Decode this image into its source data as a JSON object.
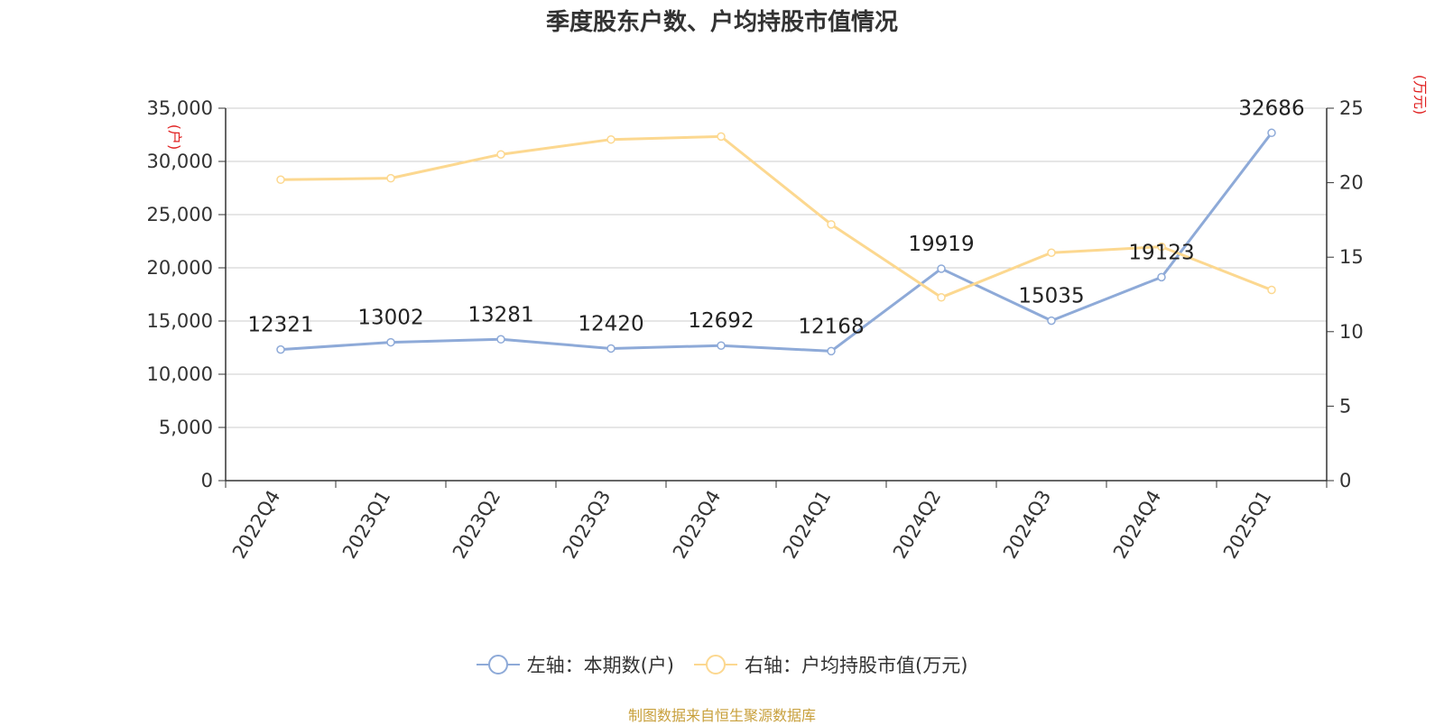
{
  "title": "季度股东户数、户均持股市值情况",
  "footer": "制图数据来自恒生聚源数据库",
  "chart_data": {
    "type": "line",
    "categories": [
      "2022Q4",
      "2023Q1",
      "2023Q2",
      "2023Q3",
      "2023Q4",
      "2024Q1",
      "2024Q2",
      "2024Q3",
      "2024Q4",
      "2025Q1"
    ],
    "y_left": {
      "unit_label": "(户)",
      "range": [
        0,
        35000
      ],
      "ticks": [
        0,
        5000,
        10000,
        15000,
        20000,
        25000,
        30000,
        35000
      ],
      "tick_labels": [
        "0",
        "5,000",
        "10,000",
        "15,000",
        "20,000",
        "25,000",
        "30,000",
        "35,000"
      ]
    },
    "y_right": {
      "unit_label": "(万元)",
      "range": [
        0,
        25
      ],
      "ticks": [
        0,
        5,
        10,
        15,
        20,
        25
      ],
      "tick_labels": [
        "0",
        "5",
        "10",
        "15",
        "20",
        "25"
      ]
    },
    "series": [
      {
        "name": "左轴：本期数(户)",
        "axis": "left",
        "color": "#8eaad8",
        "values": [
          12321,
          13002,
          13281,
          12420,
          12692,
          12168,
          19919,
          15035,
          19123,
          32686
        ],
        "data_labels": [
          "12321",
          "13002",
          "13281",
          "12420",
          "12692",
          "12168",
          "19919",
          "15035",
          "19123",
          "32686"
        ]
      },
      {
        "name": "右轴：户均持股市值(万元)",
        "axis": "right",
        "color": "#fcd890",
        "values": [
          20.2,
          20.3,
          21.9,
          22.9,
          23.1,
          17.2,
          12.3,
          15.3,
          15.7,
          12.8
        ]
      }
    ],
    "grid": true,
    "legend_position": "bottom-center"
  }
}
